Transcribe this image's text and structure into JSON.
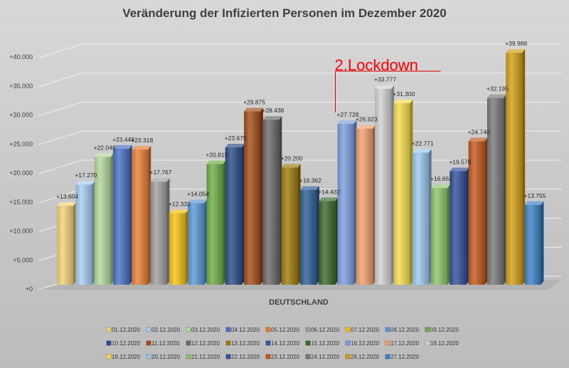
{
  "chart_data": {
    "type": "bar",
    "title": "Veränderung der Infizierten Personen im Dezember 2020",
    "xlabel": "DEUTSCHLAND",
    "ylabel": "",
    "categories": [
      "DEUTSCHLAND"
    ],
    "ylim": [
      0,
      40000
    ],
    "yticks": [
      "+0",
      "+5.000",
      "+10.000",
      "+15.000",
      "+20.000",
      "+25.000",
      "+30.000",
      "+35.000",
      "+40.000"
    ],
    "grid": true,
    "legend_position": "bottom",
    "annotation": {
      "text": "2.Lockdown",
      "color": "#ff0000"
    },
    "series": [
      {
        "name": "01.12.2020",
        "value": 13604,
        "label": "+13.604",
        "color": "#f3d27a"
      },
      {
        "name": "02.12.2020",
        "value": 17270,
        "label": "+17.270",
        "color": "#a9cdf0"
      },
      {
        "name": "03.12.2020",
        "value": 22046,
        "label": "+22.046",
        "color": "#b3d89a"
      },
      {
        "name": "04.12.2020",
        "value": 23448,
        "label": "+23.448",
        "color": "#4a73c4"
      },
      {
        "name": "05.12.2020",
        "value": 23318,
        "label": "+23.318",
        "color": "#e8803a"
      },
      {
        "name": "06.12.2020",
        "value": 17767,
        "label": "+17.767",
        "color": "#a0a0a0"
      },
      {
        "name": "07.12.2020",
        "value": 12332,
        "label": "+12.332",
        "color": "#f5c218"
      },
      {
        "name": "08.12.2020",
        "value": 14054,
        "label": "+14.054",
        "color": "#5b9bd5"
      },
      {
        "name": "09.12.2020",
        "value": 20815,
        "label": "+20.815",
        "color": "#70ad47"
      },
      {
        "name": "10.12.2020",
        "value": 23679,
        "label": "+23.679",
        "color": "#2f4f8a"
      },
      {
        "name": "11.12.2020",
        "value": 29875,
        "label": "+29.875",
        "color": "#a5501c"
      },
      {
        "name": "12.12.2020",
        "value": 28438,
        "label": "+28.438",
        "color": "#6b6b6b"
      },
      {
        "name": "13.12.2020",
        "value": 20200,
        "label": "+20.200",
        "color": "#a07c10"
      },
      {
        "name": "14.12.2020",
        "value": 16362,
        "label": "+16.362",
        "color": "#2e6296"
      },
      {
        "name": "15.12.2020",
        "value": 14432,
        "label": "+14.432",
        "color": "#3f6b2e"
      },
      {
        "name": "16.12.2020",
        "value": 27728,
        "label": "+27.728",
        "color": "#7f9fe0"
      },
      {
        "name": "17.12.2020",
        "value": 26923,
        "label": "+26.923",
        "color": "#f2a272"
      },
      {
        "name": "18.12.2020",
        "value": 33777,
        "label": "+33.777",
        "color": "#d2d2d2"
      },
      {
        "name": "19.12.2020",
        "value": 31300,
        "label": "+31.300",
        "color": "#f5dd4c"
      },
      {
        "name": "20.12.2020",
        "value": 22771,
        "label": "+22.771",
        "color": "#9cc8ee"
      },
      {
        "name": "21.12.2020",
        "value": 16661,
        "label": "+16.661",
        "color": "#8fc46c"
      },
      {
        "name": "22.12.2020",
        "value": 19578,
        "label": "+19.578",
        "color": "#34539a"
      },
      {
        "name": "23.12.2020",
        "value": 24740,
        "label": "+24.740",
        "color": "#c25a1e"
      },
      {
        "name": "24.12.2020",
        "value": 32195,
        "label": "+32.195",
        "color": "#7a7a7a"
      },
      {
        "name": "26.12.2020",
        "value": 39988,
        "label": "+39.988",
        "color": "#d4a018"
      },
      {
        "name": "27.12.2020",
        "value": 13755,
        "label": "+13.755",
        "color": "#3d82c8"
      }
    ]
  }
}
